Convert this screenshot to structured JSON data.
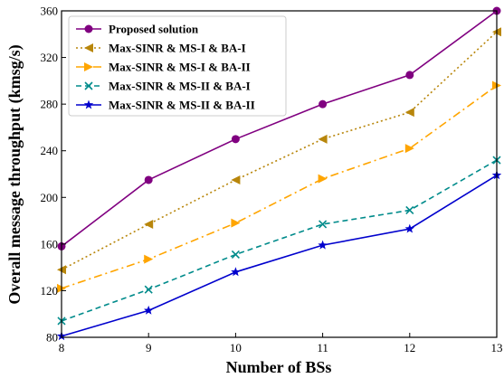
{
  "chart_data": {
    "type": "line",
    "xlabel": "Number of BSs",
    "ylabel": "Overall message throughput (kmsg/s)",
    "x": [
      8,
      9,
      10,
      11,
      12,
      13
    ],
    "xlim": [
      8,
      13
    ],
    "ylim": [
      80,
      360
    ],
    "xticks": [
      "8",
      "9",
      "10",
      "11",
      "12",
      "13"
    ],
    "yticks": [
      "80",
      "120",
      "160",
      "200",
      "240",
      "280",
      "320",
      "360"
    ],
    "grid": false,
    "legend_position": "top-left",
    "series": [
      {
        "name": "Proposed solution",
        "values": [
          158,
          215,
          250,
          280,
          305,
          360
        ],
        "color": "#800080",
        "marker": "circle",
        "dash": "solid"
      },
      {
        "name": "Max-SINR & MS-I & BA-I",
        "values": [
          138,
          177,
          215,
          250,
          273,
          342
        ],
        "color": "#b8860b",
        "marker": "triangle-left",
        "dash": "dotted"
      },
      {
        "name": "Max-SINR & MS-I & BA-II",
        "values": [
          122,
          147,
          178,
          216,
          242,
          296
        ],
        "color": "#ffa500",
        "marker": "triangle-right",
        "dash": "dashdot"
      },
      {
        "name": "Max-SINR & MS-II & BA-I",
        "values": [
          94,
          121,
          151,
          177,
          189,
          232
        ],
        "color": "#008b8b",
        "marker": "x",
        "dash": "dashed"
      },
      {
        "name": "Max-SINR & MS-II & BA-II",
        "values": [
          81,
          103,
          136,
          159,
          173,
          219
        ],
        "color": "#0000cd",
        "marker": "star",
        "dash": "solid"
      }
    ]
  }
}
